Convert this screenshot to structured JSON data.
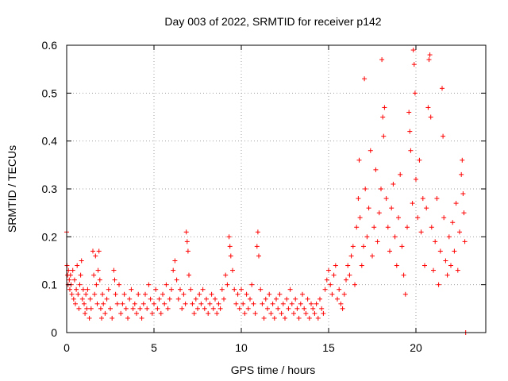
{
  "chart_data": {
    "type": "scatter",
    "title": "Day 003 of 2022, SRMTID for receiver p142",
    "xlabel": "GPS time / hours",
    "ylabel": "SRMTID / TECUs",
    "xlim": [
      0,
      24
    ],
    "ylim": [
      0,
      0.6
    ],
    "xticks": [
      0,
      5,
      10,
      15,
      20
    ],
    "xtick_labels": [
      "0",
      "5",
      "10",
      "15",
      "20"
    ],
    "yticks": [
      0,
      0.1,
      0.2,
      0.3,
      0.4,
      0.5,
      0.6
    ],
    "ytick_labels": [
      "0",
      "0.1",
      "0.2",
      "0.3",
      "0.4",
      "0.5",
      "0.6"
    ],
    "grid": true,
    "marker": "+",
    "color": "#ff0000",
    "series": [
      {
        "name": "SRMTID",
        "points": [
          [
            0.0,
            0.21
          ],
          [
            0.02,
            0.14
          ],
          [
            0.05,
            0.12
          ],
          [
            0.08,
            0.1
          ],
          [
            0.1,
            0.13
          ],
          [
            0.15,
            0.11
          ],
          [
            0.18,
            0.09
          ],
          [
            0.22,
            0.12
          ],
          [
            0.25,
            0.1
          ],
          [
            0.3,
            0.08
          ],
          [
            0.35,
            0.13
          ],
          [
            0.4,
            0.07
          ],
          [
            0.45,
            0.11
          ],
          [
            0.5,
            0.06
          ],
          [
            0.55,
            0.09
          ],
          [
            0.6,
            0.14
          ],
          [
            0.65,
            0.08
          ],
          [
            0.7,
            0.05
          ],
          [
            0.75,
            0.1
          ],
          [
            0.8,
            0.12
          ],
          [
            0.85,
            0.15
          ],
          [
            0.9,
            0.07
          ],
          [
            0.95,
            0.09
          ],
          [
            1.0,
            0.06
          ],
          [
            1.05,
            0.04
          ],
          [
            1.1,
            0.08
          ],
          [
            1.15,
            0.05
          ],
          [
            1.2,
            0.09
          ],
          [
            1.3,
            0.03
          ],
          [
            1.35,
            0.07
          ],
          [
            1.4,
            0.05
          ],
          [
            1.5,
            0.17
          ],
          [
            1.55,
            0.12
          ],
          [
            1.6,
            0.08
          ],
          [
            1.65,
            0.16
          ],
          [
            1.7,
            0.1
          ],
          [
            1.75,
            0.06
          ],
          [
            1.8,
            0.13
          ],
          [
            1.85,
            0.17
          ],
          [
            1.9,
            0.11
          ],
          [
            1.95,
            0.05
          ],
          [
            2.0,
            0.03
          ],
          [
            2.05,
            0.08
          ],
          [
            2.1,
            0.06
          ],
          [
            2.2,
            0.04
          ],
          [
            2.3,
            0.07
          ],
          [
            2.4,
            0.09
          ],
          [
            2.5,
            0.05
          ],
          [
            2.6,
            0.03
          ],
          [
            2.7,
            0.13
          ],
          [
            2.75,
            0.11
          ],
          [
            2.8,
            0.08
          ],
          [
            2.9,
            0.06
          ],
          [
            3.0,
            0.1
          ],
          [
            3.1,
            0.04
          ],
          [
            3.2,
            0.06
          ],
          [
            3.3,
            0.08
          ],
          [
            3.4,
            0.05
          ],
          [
            3.5,
            0.03
          ],
          [
            3.6,
            0.07
          ],
          [
            3.7,
            0.09
          ],
          [
            3.8,
            0.05
          ],
          [
            3.9,
            0.06
          ],
          [
            4.0,
            0.04
          ],
          [
            4.1,
            0.08
          ],
          [
            4.2,
            0.05
          ],
          [
            4.3,
            0.03
          ],
          [
            4.4,
            0.06
          ],
          [
            4.5,
            0.08
          ],
          [
            4.6,
            0.05
          ],
          [
            4.7,
            0.1
          ],
          [
            4.8,
            0.07
          ],
          [
            4.9,
            0.04
          ],
          [
            5.0,
            0.06
          ],
          [
            5.1,
            0.09
          ],
          [
            5.2,
            0.05
          ],
          [
            5.3,
            0.07
          ],
          [
            5.4,
            0.04
          ],
          [
            5.5,
            0.08
          ],
          [
            5.6,
            0.06
          ],
          [
            5.7,
            0.1
          ],
          [
            5.8,
            0.05
          ],
          [
            5.9,
            0.07
          ],
          [
            6.0,
            0.09
          ],
          [
            6.1,
            0.13
          ],
          [
            6.2,
            0.15
          ],
          [
            6.3,
            0.11
          ],
          [
            6.4,
            0.07
          ],
          [
            6.5,
            0.09
          ],
          [
            6.6,
            0.05
          ],
          [
            6.7,
            0.08
          ],
          [
            6.8,
            0.06
          ],
          [
            6.85,
            0.21
          ],
          [
            6.9,
            0.19
          ],
          [
            6.95,
            0.17
          ],
          [
            7.0,
            0.12
          ],
          [
            7.1,
            0.09
          ],
          [
            7.2,
            0.06
          ],
          [
            7.3,
            0.04
          ],
          [
            7.4,
            0.07
          ],
          [
            7.5,
            0.05
          ],
          [
            7.6,
            0.08
          ],
          [
            7.7,
            0.06
          ],
          [
            7.8,
            0.09
          ],
          [
            7.9,
            0.05
          ],
          [
            8.0,
            0.07
          ],
          [
            8.1,
            0.04
          ],
          [
            8.2,
            0.06
          ],
          [
            8.3,
            0.08
          ],
          [
            8.4,
            0.05
          ],
          [
            8.5,
            0.07
          ],
          [
            8.6,
            0.04
          ],
          [
            8.7,
            0.06
          ],
          [
            8.8,
            0.05
          ],
          [
            8.9,
            0.09
          ],
          [
            9.0,
            0.07
          ],
          [
            9.1,
            0.12
          ],
          [
            9.2,
            0.1
          ],
          [
            9.3,
            0.2
          ],
          [
            9.35,
            0.18
          ],
          [
            9.4,
            0.16
          ],
          [
            9.5,
            0.13
          ],
          [
            9.6,
            0.09
          ],
          [
            9.7,
            0.06
          ],
          [
            9.8,
            0.08
          ],
          [
            9.9,
            0.05
          ],
          [
            10.0,
            0.09
          ],
          [
            10.1,
            0.06
          ],
          [
            10.2,
            0.04
          ],
          [
            10.3,
            0.08
          ],
          [
            10.4,
            0.05
          ],
          [
            10.5,
            0.07
          ],
          [
            10.6,
            0.1
          ],
          [
            10.7,
            0.06
          ],
          [
            10.8,
            0.04
          ],
          [
            10.9,
            0.18
          ],
          [
            10.95,
            0.21
          ],
          [
            11.0,
            0.16
          ],
          [
            11.1,
            0.09
          ],
          [
            11.2,
            0.06
          ],
          [
            11.3,
            0.03
          ],
          [
            11.4,
            0.07
          ],
          [
            11.5,
            0.05
          ],
          [
            11.6,
            0.08
          ],
          [
            11.7,
            0.04
          ],
          [
            11.8,
            0.06
          ],
          [
            11.9,
            0.03
          ],
          [
            12.0,
            0.07
          ],
          [
            12.1,
            0.05
          ],
          [
            12.2,
            0.08
          ],
          [
            12.3,
            0.04
          ],
          [
            12.4,
            0.06
          ],
          [
            12.5,
            0.03
          ],
          [
            12.6,
            0.07
          ],
          [
            12.7,
            0.05
          ],
          [
            12.8,
            0.09
          ],
          [
            12.9,
            0.06
          ],
          [
            13.0,
            0.04
          ],
          [
            13.1,
            0.07
          ],
          [
            13.2,
            0.05
          ],
          [
            13.3,
            0.03
          ],
          [
            13.4,
            0.06
          ],
          [
            13.5,
            0.08
          ],
          [
            13.6,
            0.05
          ],
          [
            13.7,
            0.04
          ],
          [
            13.8,
            0.07
          ],
          [
            13.9,
            0.03
          ],
          [
            14.0,
            0.06
          ],
          [
            14.1,
            0.05
          ],
          [
            14.2,
            0.04
          ],
          [
            14.3,
            0.06
          ],
          [
            14.4,
            0.03
          ],
          [
            14.5,
            0.07
          ],
          [
            14.6,
            0.05
          ],
          [
            14.7,
            0.04
          ],
          [
            14.8,
            0.09
          ],
          [
            14.9,
            0.11
          ],
          [
            15.0,
            0.13
          ],
          [
            15.1,
            0.1
          ],
          [
            15.2,
            0.08
          ],
          [
            15.3,
            0.12
          ],
          [
            15.4,
            0.14
          ],
          [
            15.5,
            0.07
          ],
          [
            15.6,
            0.09
          ],
          [
            15.7,
            0.06
          ],
          [
            15.8,
            0.05
          ],
          [
            15.9,
            0.08
          ],
          [
            16.0,
            0.11
          ],
          [
            16.1,
            0.14
          ],
          [
            16.2,
            0.12
          ],
          [
            16.3,
            0.16
          ],
          [
            16.4,
            0.18
          ],
          [
            16.5,
            0.1
          ],
          [
            16.6,
            0.22
          ],
          [
            16.7,
            0.28
          ],
          [
            16.75,
            0.36
          ],
          [
            16.8,
            0.24
          ],
          [
            16.9,
            0.14
          ],
          [
            17.0,
            0.18
          ],
          [
            17.05,
            0.53
          ],
          [
            17.1,
            0.3
          ],
          [
            17.2,
            0.2
          ],
          [
            17.3,
            0.26
          ],
          [
            17.4,
            0.38
          ],
          [
            17.5,
            0.16
          ],
          [
            17.6,
            0.22
          ],
          [
            17.7,
            0.34
          ],
          [
            17.8,
            0.19
          ],
          [
            17.9,
            0.25
          ],
          [
            18.0,
            0.3
          ],
          [
            18.05,
            0.57
          ],
          [
            18.1,
            0.45
          ],
          [
            18.15,
            0.41
          ],
          [
            18.2,
            0.47
          ],
          [
            18.3,
            0.28
          ],
          [
            18.4,
            0.22
          ],
          [
            18.5,
            0.17
          ],
          [
            18.6,
            0.26
          ],
          [
            18.7,
            0.31
          ],
          [
            18.8,
            0.2
          ],
          [
            18.9,
            0.14
          ],
          [
            19.0,
            0.24
          ],
          [
            19.1,
            0.33
          ],
          [
            19.2,
            0.18
          ],
          [
            19.3,
            0.12
          ],
          [
            19.4,
            0.08
          ],
          [
            19.5,
            0.22
          ],
          [
            19.6,
            0.46
          ],
          [
            19.65,
            0.42
          ],
          [
            19.7,
            0.38
          ],
          [
            19.8,
            0.27
          ],
          [
            19.85,
            0.59
          ],
          [
            19.9,
            0.56
          ],
          [
            19.95,
            0.5
          ],
          [
            20.0,
            0.32
          ],
          [
            20.1,
            0.24
          ],
          [
            20.2,
            0.36
          ],
          [
            20.3,
            0.21
          ],
          [
            20.4,
            0.28
          ],
          [
            20.5,
            0.14
          ],
          [
            20.6,
            0.26
          ],
          [
            20.7,
            0.47
          ],
          [
            20.75,
            0.57
          ],
          [
            20.8,
            0.58
          ],
          [
            20.85,
            0.45
          ],
          [
            20.9,
            0.22
          ],
          [
            21.0,
            0.13
          ],
          [
            21.1,
            0.19
          ],
          [
            21.2,
            0.28
          ],
          [
            21.3,
            0.1
          ],
          [
            21.4,
            0.17
          ],
          [
            21.5,
            0.51
          ],
          [
            21.55,
            0.41
          ],
          [
            21.6,
            0.24
          ],
          [
            21.7,
            0.15
          ],
          [
            21.8,
            0.12
          ],
          [
            21.9,
            0.2
          ],
          [
            22.0,
            0.14
          ],
          [
            22.1,
            0.23
          ],
          [
            22.2,
            0.17
          ],
          [
            22.3,
            0.27
          ],
          [
            22.4,
            0.13
          ],
          [
            22.5,
            0.21
          ],
          [
            22.6,
            0.33
          ],
          [
            22.65,
            0.36
          ],
          [
            22.7,
            0.29
          ],
          [
            22.75,
            0.25
          ],
          [
            22.8,
            0.19
          ],
          [
            22.85,
            0.0
          ]
        ]
      }
    ]
  }
}
